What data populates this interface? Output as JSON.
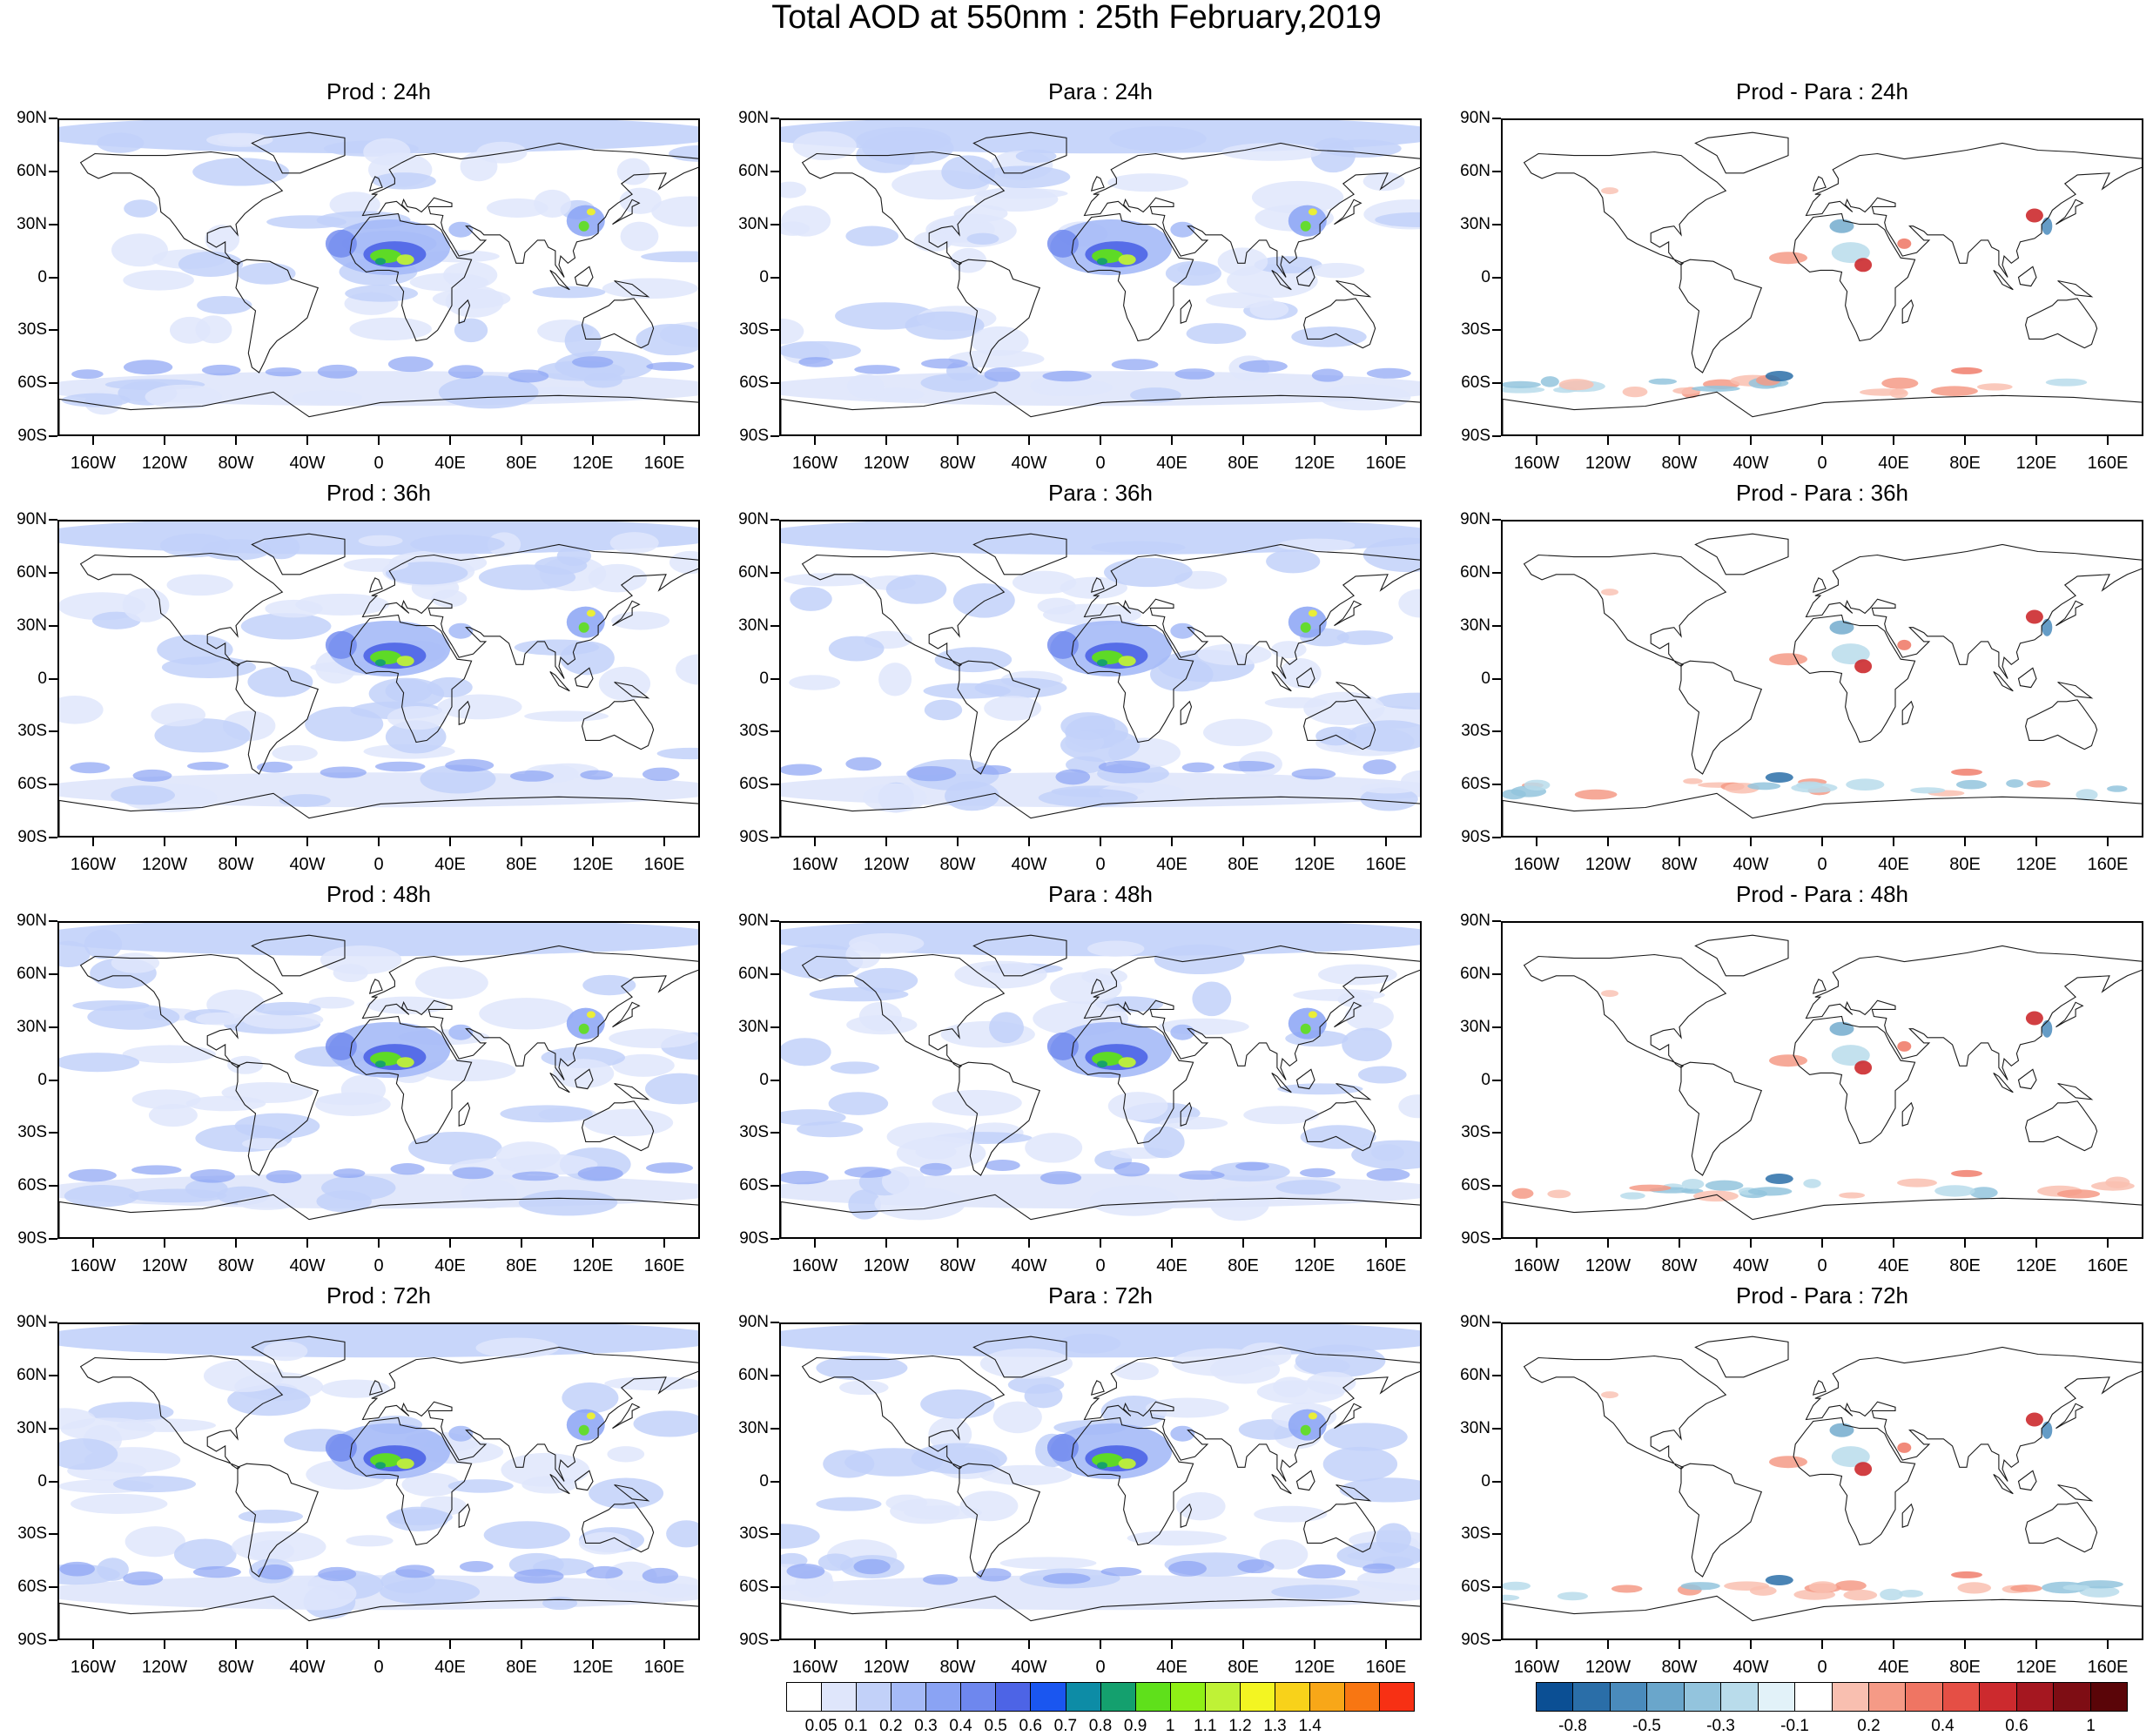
{
  "title": "Total AOD at 550nm : 25th February,2019",
  "panels": [
    {
      "title": "Prod : 24h",
      "kind": "aod"
    },
    {
      "title": "Para : 24h",
      "kind": "aod"
    },
    {
      "title": "Prod - Para : 24h",
      "kind": "diff"
    },
    {
      "title": "Prod : 36h",
      "kind": "aod"
    },
    {
      "title": "Para : 36h",
      "kind": "aod"
    },
    {
      "title": "Prod - Para : 36h",
      "kind": "diff"
    },
    {
      "title": "Prod : 48h",
      "kind": "aod"
    },
    {
      "title": "Para : 48h",
      "kind": "aod"
    },
    {
      "title": "Prod - Para : 48h",
      "kind": "diff"
    },
    {
      "title": "Prod : 72h",
      "kind": "aod"
    },
    {
      "title": "Para : 72h",
      "kind": "aod"
    },
    {
      "title": "Prod - Para : 72h",
      "kind": "diff"
    }
  ],
  "lat_labels": [
    "90N",
    "60N",
    "30N",
    "0",
    "30S",
    "60S",
    "90S"
  ],
  "lon_labels": [
    "160W",
    "120W",
    "80W",
    "40W",
    "0",
    "40E",
    "80E",
    "120E",
    "160E"
  ],
  "aod_colorbar": {
    "colors": [
      "#ffffff",
      "#dfe6fb",
      "#c2d1f9",
      "#a5baf7",
      "#8aa3f4",
      "#6e87ee",
      "#4d64e6",
      "#1a56f0",
      "#0d8ca6",
      "#14a06e",
      "#5fe01b",
      "#8ff016",
      "#bff236",
      "#f3f522",
      "#f8d21a",
      "#f8a718",
      "#f87612",
      "#f73014"
    ],
    "labels": [
      "0.05",
      "0.1",
      "0.2",
      "0.3",
      "0.4",
      "0.5",
      "0.6",
      "0.7",
      "0.8",
      "0.9",
      "1",
      "1.1",
      "1.2",
      "1.3",
      "1.4"
    ]
  },
  "diff_colorbar": {
    "colors": [
      "#0b4f94",
      "#2a6ea8",
      "#4a8bbc",
      "#6aa6cb",
      "#93c4dd",
      "#b9dceb",
      "#e2f2f9",
      "#ffffff",
      "#f9bfb0",
      "#f59a86",
      "#ef7563",
      "#e54f45",
      "#cc2a2e",
      "#a51720",
      "#7e0d14",
      "#5a0508"
    ],
    "labels": [
      "-0.8",
      "-0.5",
      "-0.3",
      "-0.1",
      "0.2",
      "0.4",
      "0.6",
      "1"
    ]
  }
}
